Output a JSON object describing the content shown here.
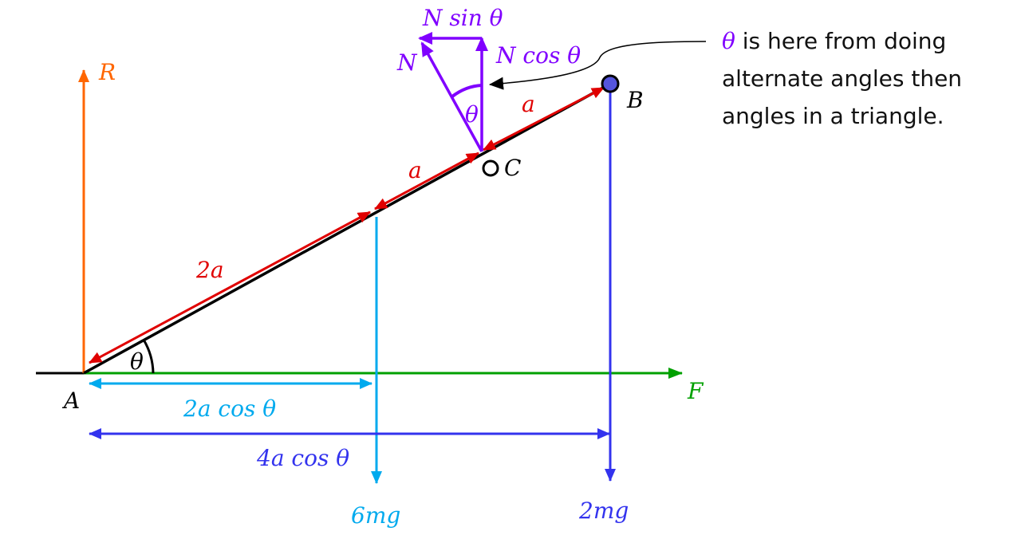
{
  "colors": {
    "rod": "#000000",
    "reaction": "#ff6600",
    "lengths": "#e00000",
    "normal": "#8000ff",
    "friction": "#00a000",
    "weight6": "#00aaee",
    "weight2": "#3333ee",
    "pointB": "#5555dd"
  },
  "labels": {
    "R": "R",
    "A": "A",
    "B": "B",
    "C": "C",
    "F": "F",
    "theta_A": "θ",
    "theta_N": "θ",
    "len_2a": "2a",
    "len_a1": "a",
    "len_a2": "a",
    "N": "N",
    "N_sin": "N sin θ",
    "N_cos": "N cos θ",
    "dim_2acos": "2a cos θ",
    "dim_4acos": "4a cos θ",
    "w_6mg": "6mg",
    "w_2mg": "2mg"
  },
  "note": {
    "theta": "θ",
    "line1_rest": " is here from doing",
    "line2": "alternate angles then",
    "line3": "angles in a triangle."
  }
}
